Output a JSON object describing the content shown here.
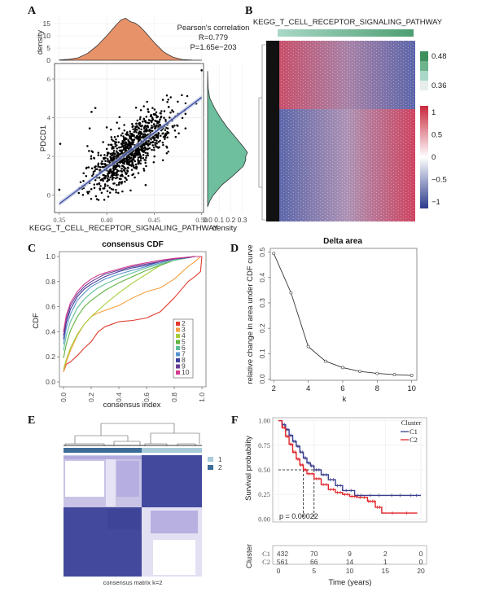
{
  "panels": {
    "A": "A",
    "B": "B",
    "C": "C",
    "D": "D",
    "E": "E",
    "F": "F"
  },
  "chart_data": [
    {
      "id": "A",
      "type": "scatter",
      "xlabel": "KEGG_T_CELL_RECEPTOR_SIGNALING_PATHWAY",
      "ylabel": "PDCD1",
      "xlim": [
        0.345,
        0.502
      ],
      "ylim": [
        -0.9,
        6.8
      ],
      "xticks": [
        "0.35",
        "0.40",
        "0.45",
        "0.50"
      ],
      "xtick_values": [
        0.35,
        0.4,
        0.45,
        0.5
      ],
      "yticks": [
        "0",
        "2",
        "4",
        "6"
      ],
      "ytick_values": [
        0,
        2,
        4,
        6
      ],
      "annotation": [
        "Pearson's correlation",
        "R=0.779",
        "P=1.65e−203"
      ],
      "regression": {
        "x": [
          0.35,
          0.5
        ],
        "y": [
          -0.45,
          5.05
        ]
      },
      "n_points": 1000,
      "outliers": [
        [
          0.351,
          2.65
        ],
        [
          0.384,
          4.3
        ],
        [
          0.388,
          4.5
        ],
        [
          0.382,
          3.45
        ],
        [
          0.4,
          3.5
        ],
        [
          0.5,
          6.45
        ],
        [
          0.483,
          3.45
        ],
        [
          0.483,
          4.2
        ],
        [
          0.35,
          0.28
        ],
        [
          0.441,
          0.52
        ]
      ],
      "top_density": {
        "ylabel": "density",
        "yticks": [
          "0",
          "5",
          "10",
          "15"
        ],
        "ytick_values": [
          0,
          5,
          10,
          15
        ],
        "ylim": [
          0,
          18
        ],
        "color": "#e8926a",
        "x": [
          0.35,
          0.36,
          0.37,
          0.38,
          0.39,
          0.4,
          0.41,
          0.415,
          0.42,
          0.425,
          0.43,
          0.435,
          0.44,
          0.45,
          0.46,
          0.47,
          0.48,
          0.49,
          0.5
        ],
        "y": [
          0.1,
          0.4,
          1.0,
          2.9,
          6.0,
          10.0,
          14.5,
          16.5,
          17.2,
          15.8,
          15.2,
          13.8,
          11.8,
          7.3,
          3.4,
          1.2,
          0.3,
          0.05,
          0.0
        ]
      },
      "right_density": {
        "xlabel": "density",
        "xticks": [
          "0.0",
          "0.1",
          "0.2",
          "0.3"
        ],
        "xtick_values": [
          0,
          0.1,
          0.2,
          0.3
        ],
        "xlim": [
          0,
          0.36
        ],
        "color": "#6dbf9e",
        "y": [
          6.4,
          6.0,
          5.5,
          5.0,
          4.5,
          4.0,
          3.5,
          3.0,
          2.5,
          2.2,
          2.0,
          1.8,
          1.5,
          1.0,
          0.5,
          0.0,
          -0.3,
          -0.6
        ],
        "x": [
          0.0,
          0.002,
          0.005,
          0.02,
          0.06,
          0.11,
          0.17,
          0.24,
          0.31,
          0.345,
          0.33,
          0.33,
          0.31,
          0.22,
          0.12,
          0.05,
          0.02,
          0.0
        ]
      }
    },
    {
      "id": "B",
      "type": "heatmap",
      "title": "KEGG_T_CELL_RECEPTOR_SIGNALING_PATHWAY",
      "annotation_legend": {
        "max": "0.48",
        "min": "0.36",
        "colors": [
          "#3f8f5e",
          "#6db38b",
          "#a9d8c7",
          "#e5eeea"
        ]
      },
      "color_legend": {
        "ticks": [
          "1",
          "0.5",
          "0",
          "−0.5",
          "−1"
        ],
        "tick_values": [
          1,
          0.5,
          0,
          -0.5,
          -1
        ],
        "high": "#c8283c",
        "mid": "#ffffff",
        "low": "#2c3b8c"
      },
      "row_blocks": [
        {
          "fraction": 0.38,
          "trend": "red-to-blue"
        },
        {
          "fraction": 0.62,
          "trend": "blue-to-red"
        }
      ]
    },
    {
      "id": "C",
      "type": "line",
      "title": "consensus CDF",
      "xlabel": "consensus index",
      "ylabel": "CDF",
      "xlim": [
        0,
        1
      ],
      "ylim": [
        0,
        1
      ],
      "xticks": [
        "0.0",
        "0.2",
        "0.4",
        "0.6",
        "0.8",
        "1.0"
      ],
      "yticks": [
        "0.0",
        "0.2",
        "0.4",
        "0.6",
        "0.8",
        "1.0"
      ],
      "x": [
        0.0,
        0.02,
        0.05,
        0.1,
        0.15,
        0.2,
        0.25,
        0.3,
        0.4,
        0.5,
        0.6,
        0.7,
        0.8,
        0.9,
        0.95,
        0.99,
        1.0
      ],
      "legend_position": "bottom-right",
      "series": [
        {
          "name": "2",
          "color": "#e0392b",
          "values": [
            0.08,
            0.14,
            0.16,
            0.21,
            0.27,
            0.32,
            0.4,
            0.44,
            0.48,
            0.49,
            0.51,
            0.56,
            0.67,
            0.8,
            0.84,
            0.88,
            1.0
          ]
        },
        {
          "name": "3",
          "color": "#f4a040",
          "values": [
            0.08,
            0.16,
            0.25,
            0.37,
            0.46,
            0.52,
            0.55,
            0.57,
            0.61,
            0.67,
            0.72,
            0.75,
            0.82,
            0.92,
            0.96,
            1.0,
            1.0
          ]
        },
        {
          "name": "4",
          "color": "#a5cf3a",
          "values": [
            0.1,
            0.18,
            0.27,
            0.38,
            0.46,
            0.52,
            0.57,
            0.62,
            0.71,
            0.79,
            0.86,
            0.93,
            0.97,
            0.99,
            1.0,
            1.0,
            1.0
          ]
        },
        {
          "name": "5",
          "color": "#5fb23f",
          "values": [
            0.19,
            0.3,
            0.41,
            0.52,
            0.6,
            0.65,
            0.69,
            0.73,
            0.79,
            0.84,
            0.89,
            0.93,
            0.97,
            0.99,
            1.0,
            1.0,
            1.0
          ]
        },
        {
          "name": "6",
          "color": "#60bf9a",
          "values": [
            0.25,
            0.37,
            0.48,
            0.59,
            0.66,
            0.71,
            0.75,
            0.78,
            0.83,
            0.87,
            0.91,
            0.94,
            0.97,
            0.99,
            1.0,
            1.0,
            1.0
          ]
        },
        {
          "name": "7",
          "color": "#5a94cf",
          "values": [
            0.3,
            0.43,
            0.54,
            0.65,
            0.71,
            0.76,
            0.79,
            0.82,
            0.86,
            0.89,
            0.92,
            0.95,
            0.98,
            0.99,
            1.0,
            1.0,
            1.0
          ]
        },
        {
          "name": "8",
          "color": "#3f3f9a",
          "values": [
            0.34,
            0.47,
            0.58,
            0.68,
            0.74,
            0.78,
            0.81,
            0.84,
            0.88,
            0.91,
            0.93,
            0.96,
            0.98,
            0.99,
            1.0,
            1.0,
            1.0
          ]
        },
        {
          "name": "9",
          "color": "#6a3b96",
          "values": [
            0.37,
            0.5,
            0.61,
            0.7,
            0.76,
            0.8,
            0.83,
            0.86,
            0.89,
            0.92,
            0.94,
            0.96,
            0.98,
            0.995,
            1.0,
            1.0,
            1.0
          ]
        },
        {
          "name": "10",
          "color": "#d03a8c",
          "values": [
            0.4,
            0.53,
            0.63,
            0.72,
            0.78,
            0.82,
            0.85,
            0.87,
            0.9,
            0.93,
            0.95,
            0.97,
            0.985,
            0.995,
            1.0,
            1.0,
            1.0
          ]
        }
      ]
    },
    {
      "id": "D",
      "type": "line",
      "title": "Delta area",
      "xlabel": "k",
      "ylabel": "relative change in area under CDF curve",
      "xlim": [
        1.8,
        10.3
      ],
      "ylim": [
        -0.005,
        0.515
      ],
      "xticks": [
        "2",
        "4",
        "6",
        "8",
        "10"
      ],
      "xtick_values": [
        2,
        4,
        6,
        8,
        10
      ],
      "yticks": [
        "0.0",
        "0.1",
        "0.2",
        "0.3",
        "0.4",
        "0.5"
      ],
      "ytick_values": [
        0,
        0.1,
        0.2,
        0.3,
        0.4,
        0.5
      ],
      "x": [
        2,
        3,
        4,
        5,
        6,
        7,
        8,
        9,
        10
      ],
      "values": [
        0.495,
        0.34,
        0.128,
        0.07,
        0.045,
        0.03,
        0.022,
        0.017,
        0.014
      ]
    },
    {
      "id": "E",
      "type": "heatmap",
      "xlabel": "consensus matrix k=2",
      "legend": [
        {
          "label": "1",
          "color": "#a8cbd9"
        },
        {
          "label": "2",
          "color": "#3d6d97"
        }
      ],
      "cluster_fractions": [
        0.57,
        0.43
      ]
    },
    {
      "id": "F",
      "type": "line",
      "subtype": "kaplan-meier",
      "xlabel": "Time (years)",
      "ylabel": "Survival probability",
      "xlim": [
        -0.8,
        20.8
      ],
      "ylim": [
        -0.03,
        1.03
      ],
      "xticks": [
        "0",
        "5",
        "10",
        "15",
        "20"
      ],
      "xtick_values": [
        0,
        5,
        10,
        15,
        20
      ],
      "yticks": [
        "0.00",
        "0.25",
        "0.50",
        "0.75",
        "1.00"
      ],
      "ytick_values": [
        0,
        0.25,
        0.5,
        0.75,
        1.0
      ],
      "annotation": "p = 0.00022",
      "legend_title": "Cluster",
      "legend_position": "top-right",
      "median_lines": [
        3.5,
        5.0
      ],
      "series": [
        {
          "name": "C1",
          "color": "#3b3f8f",
          "x": [
            0,
            0.5,
            1,
            1.5,
            2,
            2.5,
            3,
            3.5,
            4,
            4.5,
            5,
            6,
            7,
            8,
            9,
            10.7,
            12,
            15,
            18,
            20
          ],
          "values": [
            1.0,
            0.96,
            0.91,
            0.85,
            0.79,
            0.74,
            0.68,
            0.62,
            0.57,
            0.54,
            0.5,
            0.45,
            0.4,
            0.34,
            0.29,
            0.24,
            0.24,
            0.24,
            0.24,
            0.24
          ]
        },
        {
          "name": "C2",
          "color": "#e0262a",
          "x": [
            0,
            0.5,
            1,
            1.5,
            2,
            2.5,
            3,
            3.5,
            4,
            5,
            6,
            7,
            8,
            9,
            10,
            11,
            12.5,
            13,
            13.6,
            14.5,
            19.5
          ],
          "values": [
            1.0,
            0.93,
            0.84,
            0.76,
            0.68,
            0.61,
            0.55,
            0.5,
            0.46,
            0.41,
            0.35,
            0.3,
            0.27,
            0.25,
            0.23,
            0.22,
            0.18,
            0.18,
            0.12,
            0.06,
            0.06
          ]
        }
      ],
      "risk_table": {
        "title": "Cluster",
        "rows": [
          {
            "name": "C1",
            "values": [
              "432",
              "70",
              "9",
              "2",
              "0"
            ]
          },
          {
            "name": "C2",
            "values": [
              "561",
              "66",
              "14",
              "1",
              "0"
            ]
          }
        ]
      }
    }
  ]
}
